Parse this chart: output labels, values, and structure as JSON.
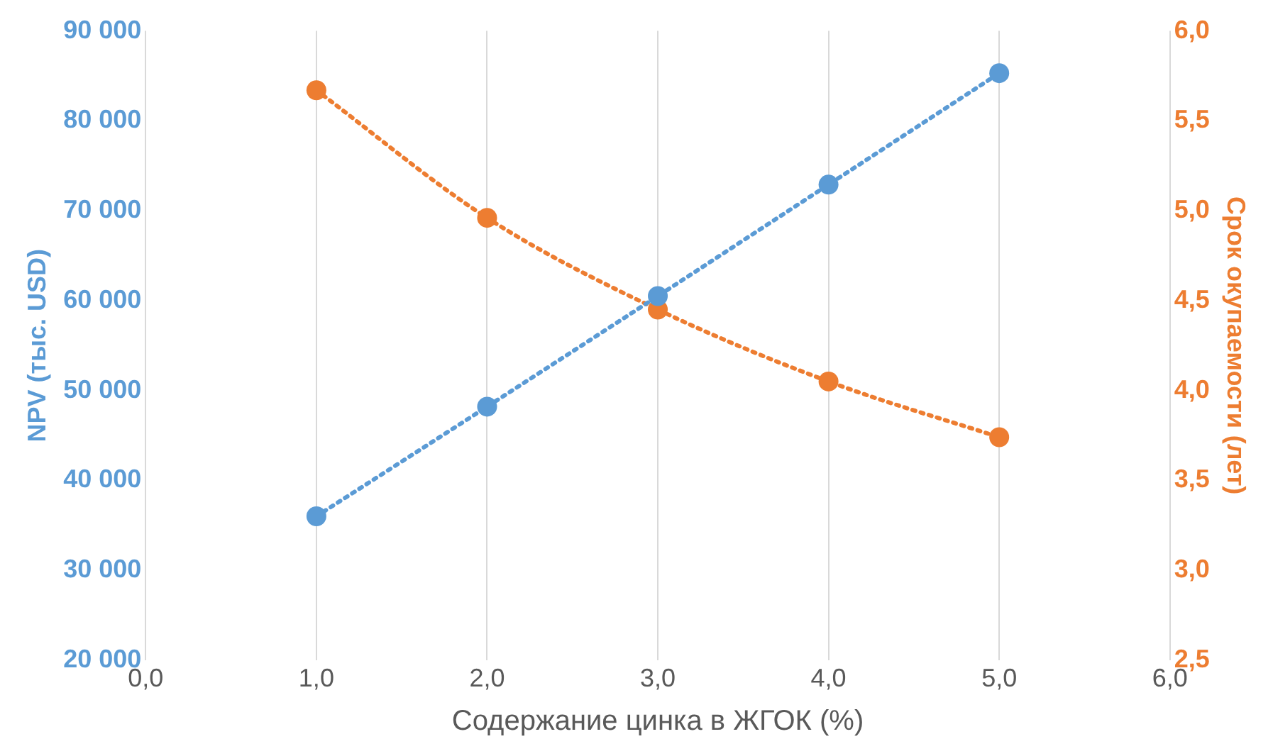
{
  "chart_data": {
    "type": "line",
    "xlabel": "Содержание цинка в ЖГОК (%)",
    "ylabel": "NPV (тыс. USD)",
    "y2label": "Срок окупаемости (лет)",
    "x": [
      1,
      2,
      3,
      4,
      5
    ],
    "series": [
      {
        "color": "#5b9bd5",
        "values": [
          36000,
          48200,
          60500,
          72900,
          85300
        ]
      },
      {
        "color": "#ed7d31",
        "axis": "y2",
        "values": [
          5.67,
          4.96,
          4.45,
          4.05,
          3.74
        ]
      }
    ],
    "xlim": [
      0,
      6
    ],
    "xticks": [
      {
        "value": 0,
        "label": "0,0"
      },
      {
        "value": 1,
        "label": "1,0"
      },
      {
        "value": 2,
        "label": "2,0"
      },
      {
        "value": 3,
        "label": "3,0"
      },
      {
        "value": 4,
        "label": "4,0"
      },
      {
        "value": 5,
        "label": "5,0"
      },
      {
        "value": 6,
        "label": "6,0"
      }
    ],
    "ylim": [
      20000,
      90000
    ],
    "yticks": [
      {
        "value": 20000,
        "label": "20 000"
      },
      {
        "value": 30000,
        "label": "30 000"
      },
      {
        "value": 40000,
        "label": "40 000"
      },
      {
        "value": 50000,
        "label": "50 000"
      },
      {
        "value": 60000,
        "label": "60 000"
      },
      {
        "value": 70000,
        "label": "70 000"
      },
      {
        "value": 80000,
        "label": "80 000"
      },
      {
        "value": 90000,
        "label": "90 000"
      }
    ],
    "y2lim": [
      2.5,
      6.0
    ],
    "y2ticks": [
      {
        "value": 2.5,
        "label": "2,5"
      },
      {
        "value": 3,
        "label": "3,0"
      },
      {
        "value": 3.5,
        "label": "3,5"
      },
      {
        "value": 4,
        "label": "4,0"
      },
      {
        "value": 4.5,
        "label": "4,5"
      },
      {
        "value": 5,
        "label": "5,0"
      },
      {
        "value": 5.5,
        "label": "5,5"
      },
      {
        "value": 6,
        "label": "6,0"
      }
    ],
    "grid": "x",
    "marker": "circle",
    "line_style": "dotted",
    "legend": false
  }
}
